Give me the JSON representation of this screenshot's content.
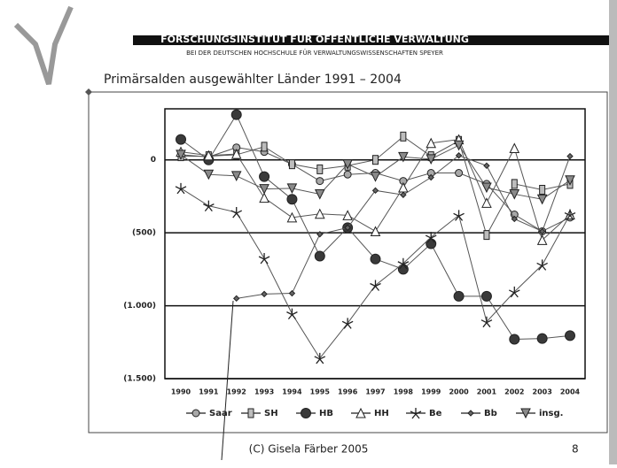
{
  "header": {
    "title": "FORSCHUNGSINSTITUT  FÜR ÖFFENTLICHE VERWALTUNG",
    "subtitle": "BEI DER DEUTSCHEN HOCHSCHULE  FÜR VERWALTUNGSWISSENSCHAFTEN SPEYER"
  },
  "footer": {
    "copyright": "(C) Gisela  Färber 2005",
    "page": "8"
  },
  "chart_data": {
    "type": "line",
    "title": "Primärsalden ausgewählter Länder 1991 – 2004",
    "categories": [
      "1990",
      "1991",
      "1992",
      "1993",
      "1994",
      "1995",
      "1996",
      "1997",
      "1998",
      "1999",
      "2000",
      "2001",
      "2002",
      "2003",
      "2004"
    ],
    "ylim": [
      -1500,
      350
    ],
    "yticks": [
      {
        "value": -1500,
        "label": "(1.500)"
      },
      {
        "value": -1000,
        "label": "(1.000)"
      },
      {
        "value": -500,
        "label": "(500)"
      },
      0
    ],
    "grid": true,
    "legend": "bottom",
    "series": [
      {
        "name": "Saar",
        "color": "#a8a8a8",
        "marker": "circle",
        "values": [
          35,
          20,
          85,
          55,
          -30,
          -145,
          -100,
          -90,
          -145,
          -90,
          -90,
          -165,
          -375,
          -490,
          -395
        ]
      },
      {
        "name": "SH",
        "color": "#bdbdbd",
        "marker": "square",
        "values": [
          25,
          25,
          35,
          90,
          -30,
          -65,
          -40,
          0,
          160,
          25,
          130,
          -515,
          -165,
          -205,
          -165
        ]
      },
      {
        "name": "HB",
        "color": "#3a3a3a",
        "marker": "big-circle",
        "values": [
          140,
          0,
          310,
          -115,
          -270,
          -660,
          -465,
          -680,
          -750,
          -575,
          -935,
          -935,
          -1230,
          -1225,
          -1205
        ]
      },
      {
        "name": "HH",
        "color": "#ffffff",
        "marker": "triangle",
        "values": [
          55,
          30,
          40,
          -260,
          -395,
          -370,
          -380,
          -490,
          -190,
          115,
          140,
          -295,
          80,
          -550,
          -375
        ]
      },
      {
        "name": "Be",
        "color": "#333333",
        "marker": "star",
        "values": [
          -195,
          -315,
          -360,
          -675,
          -1055,
          -1360,
          -1120,
          -860,
          -710,
          -530,
          -380,
          -1110,
          -905,
          -720,
          -375
        ]
      },
      {
        "name": "Bb",
        "color": "#666666",
        "marker": "diamond",
        "values": [
          null,
          null,
          -950,
          -920,
          -915,
          -510,
          -465,
          -210,
          -240,
          -120,
          30,
          -40,
          -405,
          -490,
          25
        ]
      },
      {
        "name": "insg.",
        "color": "#8a8a8a",
        "marker": "triangle-down",
        "values": [
          35,
          -100,
          -110,
          -200,
          -195,
          -235,
          -30,
          -115,
          20,
          5,
          100,
          -190,
          -235,
          -270,
          -140
        ]
      }
    ]
  }
}
